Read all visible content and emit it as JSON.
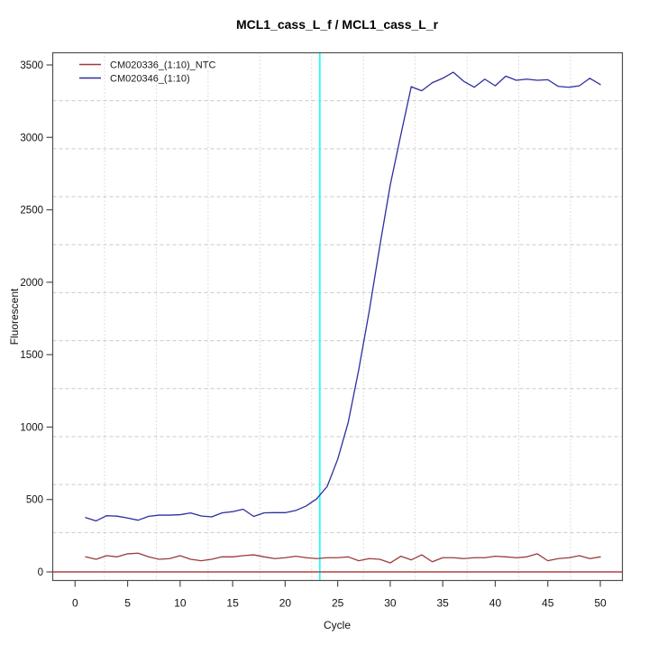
{
  "chart_data": {
    "type": "line",
    "title": "MCL1_cass_L_f / MCL1_cass_L_r",
    "xlabel": "Cycle",
    "ylabel": "Fluorescent",
    "x": [
      1,
      2,
      3,
      4,
      5,
      6,
      7,
      8,
      9,
      10,
      11,
      12,
      13,
      14,
      15,
      16,
      17,
      18,
      19,
      20,
      21,
      22,
      23,
      24,
      25,
      26,
      27,
      28,
      29,
      30,
      31,
      32,
      33,
      34,
      35,
      36,
      37,
      38,
      39,
      40,
      41,
      42,
      43,
      44,
      45,
      46,
      47,
      48,
      49,
      50
    ],
    "series": [
      {
        "name": "CM020336_(1:10)_NTC",
        "color": "#9c3a3a",
        "values": [
          104,
          87,
          112,
          104,
          125,
          129,
          104,
          87,
          92,
          112,
          87,
          77,
          87,
          104,
          104,
          112,
          118,
          104,
          92,
          98,
          108,
          98,
          92,
          98,
          98,
          104,
          77,
          92,
          87,
          62,
          108,
          83,
          118,
          70,
          98,
          98,
          92,
          98,
          98,
          108,
          104,
          98,
          104,
          125,
          77,
          92,
          98,
          112,
          92,
          104
        ]
      },
      {
        "name": "CM020346_(1:10)",
        "color": "#2e2e9e",
        "values": [
          375,
          352,
          388,
          385,
          372,
          357,
          384,
          392,
          392,
          395,
          407,
          386,
          380,
          408,
          416,
          433,
          383,
          408,
          409,
          409,
          424,
          455,
          505,
          590,
          778,
          1032,
          1395,
          1800,
          2246,
          2671,
          3014,
          3350,
          3322,
          3377,
          3408,
          3450,
          3387,
          3346,
          3402,
          3356,
          3423,
          3394,
          3402,
          3394,
          3398,
          3352,
          3346,
          3356,
          3408,
          3365
        ]
      }
    ],
    "xticks": [
      0,
      5,
      10,
      15,
      20,
      25,
      30,
      35,
      40,
      45,
      50
    ],
    "yticks": [
      0,
      500,
      1000,
      1500,
      2000,
      2500,
      3000,
      3500
    ],
    "xlim": [
      -2.2,
      52.6
    ],
    "ylim": [
      -62,
      3587
    ],
    "grid": true,
    "grid_divisions": 11,
    "legend_position": "top-left",
    "threshold_line": {
      "y": 0,
      "color": "#b24242"
    },
    "ct_line": {
      "x": 23.3,
      "color": "#00ffff"
    },
    "axis_color": "#4f4f4f",
    "grid_color_v": "#bfbfbf",
    "grid_color_h": "#c9c9c9"
  }
}
